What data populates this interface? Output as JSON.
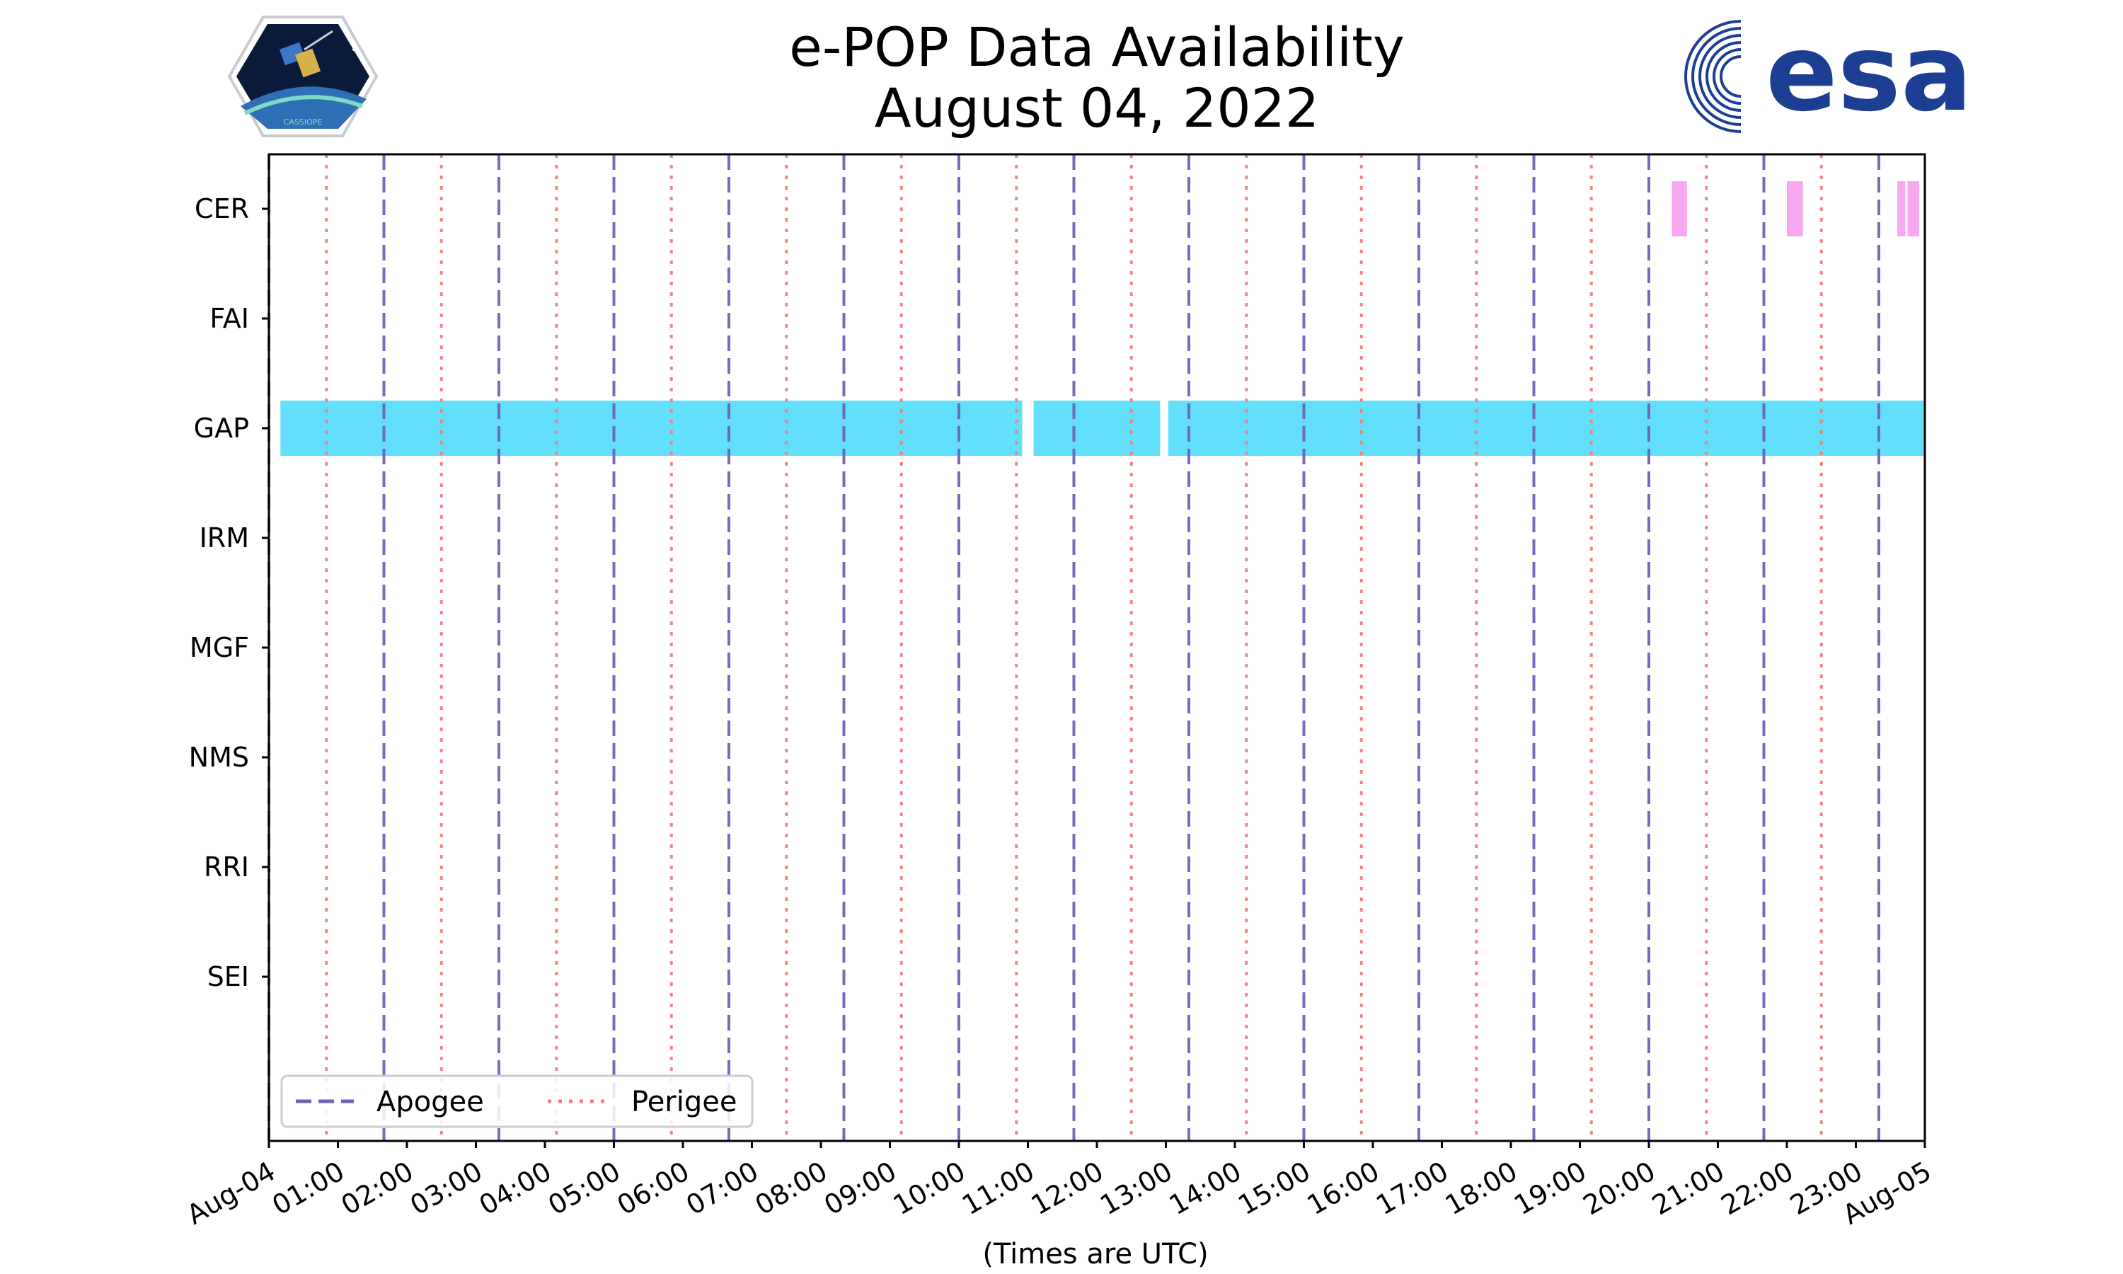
{
  "chart_data": {
    "type": "timeline",
    "title": "e-POP Data Availability",
    "subtitle": "August 04, 2022",
    "xlabel": "(Times are UTC)",
    "xlim": [
      "2022-08-04 00:00",
      "2022-08-05 00:00"
    ],
    "x_tick_labels": [
      "Aug-04",
      "01:00",
      "02:00",
      "03:00",
      "04:00",
      "05:00",
      "06:00",
      "07:00",
      "08:00",
      "09:00",
      "10:00",
      "11:00",
      "12:00",
      "13:00",
      "14:00",
      "15:00",
      "16:00",
      "17:00",
      "18:00",
      "19:00",
      "20:00",
      "21:00",
      "22:00",
      "23:00",
      "Aug-05"
    ],
    "instruments": [
      "CER",
      "FAI",
      "GAP",
      "IRM",
      "MGF",
      "NMS",
      "RRI",
      "SEI"
    ],
    "apogee_times": [
      "00:00",
      "01:40",
      "03:20",
      "05:00",
      "06:40",
      "08:20",
      "10:00",
      "11:40",
      "13:20",
      "15:00",
      "16:40",
      "18:20",
      "20:00",
      "21:40",
      "23:20"
    ],
    "perigee_times": [
      "00:50",
      "02:30",
      "04:10",
      "05:50",
      "07:30",
      "09:10",
      "10:50",
      "12:30",
      "14:10",
      "15:50",
      "17:30",
      "19:10",
      "20:50",
      "22:30"
    ],
    "series": [
      {
        "name": "CER",
        "color": "#f7a8f0",
        "intervals": [
          [
            "20:20",
            "20:33"
          ],
          [
            "22:00",
            "22:14"
          ],
          [
            "23:36",
            "23:43"
          ],
          [
            "23:45",
            "23:55"
          ]
        ]
      },
      {
        "name": "FAI",
        "color": "#f7a8f0",
        "intervals": []
      },
      {
        "name": "GAP",
        "color": "#62dffa",
        "intervals": [
          [
            "00:10",
            "10:55"
          ],
          [
            "11:05",
            "12:55"
          ],
          [
            "13:02",
            "24:00"
          ]
        ]
      },
      {
        "name": "IRM",
        "color": "#62dffa",
        "intervals": []
      },
      {
        "name": "MGF",
        "color": "#62dffa",
        "intervals": []
      },
      {
        "name": "NMS",
        "color": "#62dffa",
        "intervals": []
      },
      {
        "name": "RRI",
        "color": "#62dffa",
        "intervals": []
      },
      {
        "name": "SEI",
        "color": "#62dffa",
        "intervals": []
      }
    ],
    "legend": {
      "placement": "lower-left",
      "entries": [
        {
          "label": "Apogee",
          "color": "#6c63b8",
          "style": "dashed"
        },
        {
          "label": "Perigee",
          "color": "#f08080",
          "style": "dotted"
        }
      ]
    },
    "grid": false
  },
  "logos": {
    "left": "cassiope-logo",
    "left_text": "CASSIOPE",
    "right": "esa-logo",
    "right_text": "esa"
  }
}
